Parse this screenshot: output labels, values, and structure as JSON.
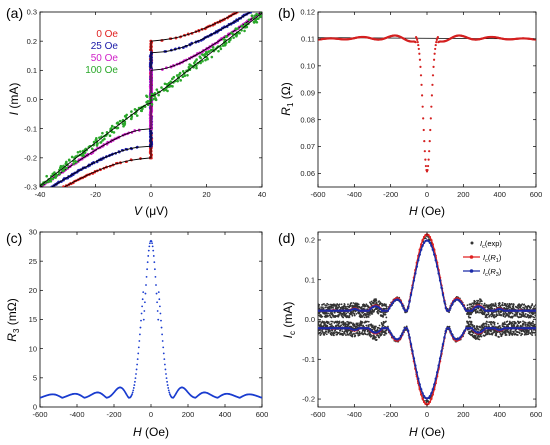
{
  "chart_data": [
    {
      "panel": "(a)",
      "type": "line",
      "xlabel": "V (μV)",
      "ylabel": "I (mA)",
      "xlim": [
        -40,
        40
      ],
      "ylim": [
        -0.3,
        0.3
      ],
      "xticks": [
        "-40",
        "-20",
        "0",
        "20",
        "40"
      ],
      "yticks": [
        "-0.3",
        "-0.2",
        "-0.1",
        "0.0",
        "0.1",
        "0.2",
        "0.3"
      ],
      "legend_position": "top-left",
      "series": [
        {
          "name": "0 Oe",
          "color": "#e02020",
          "ic": 0.202,
          "R": 0.0071,
          "noise": 0
        },
        {
          "name": "25 Oe",
          "color": "#1a1aa8",
          "ic": 0.16,
          "R": 0.0071,
          "noise": 0
        },
        {
          "name": "50 Oe",
          "color": "#d020c8",
          "ic": 0.1,
          "R": 0.0071,
          "noise": 0
        },
        {
          "name": "100 Oe",
          "color": "#2aa82a",
          "ic": 0.012,
          "R": 0.0074,
          "noise": 0.008
        }
      ],
      "fit_color": "#000000"
    },
    {
      "panel": "(b)",
      "type": "scatter",
      "xlabel": "H (Oe)",
      "ylabel": "R1 (Ω)",
      "xlim": [
        -600,
        600
      ],
      "ylim": [
        0.055,
        0.12
      ],
      "xticks": [
        "-600",
        "-400",
        "-200",
        "0",
        "200",
        "400",
        "600"
      ],
      "yticks": [
        "0.06",
        "0.07",
        "0.08",
        "0.09",
        "0.10",
        "0.11",
        "0.12"
      ],
      "baseline": 0.11,
      "min_value": 0.059,
      "color": "#d42020"
    },
    {
      "panel": "(c)",
      "type": "scatter",
      "xlabel": "H (Oe)",
      "ylabel": "R3 (mΩ)",
      "xlim": [
        -600,
        600
      ],
      "ylim": [
        0,
        30
      ],
      "xticks": [
        "-600",
        "-400",
        "-200",
        "0",
        "200",
        "400",
        "600"
      ],
      "yticks": [
        "0",
        "5",
        "10",
        "15",
        "20",
        "25",
        "30"
      ],
      "peak": 28,
      "floor": 1.8,
      "color": "#1a3ccf"
    },
    {
      "panel": "(d)",
      "type": "line",
      "xlabel": "H (Oe)",
      "ylabel": "Ic (mA)",
      "xlim": [
        -600,
        600
      ],
      "ylim": [
        -0.22,
        0.22
      ],
      "xticks": [
        "-600",
        "-400",
        "-200",
        "0",
        "200",
        "400",
        "600"
      ],
      "yticks": [
        "-0.2",
        "-0.1",
        "0.0",
        "0.1",
        "0.2"
      ],
      "legend_position": "top-right",
      "series": [
        {
          "name": "Ic(exp)",
          "color": "#333333",
          "peak": 0.2,
          "style": "dots"
        },
        {
          "name": "Ic(R1)",
          "color": "#e02020",
          "peak": 0.205,
          "style": "line-marker"
        },
        {
          "name": "Ic(R3)",
          "color": "#1a2aa8",
          "peak": 0.19,
          "style": "line-marker"
        }
      ],
      "floor": 0.022
    }
  ]
}
